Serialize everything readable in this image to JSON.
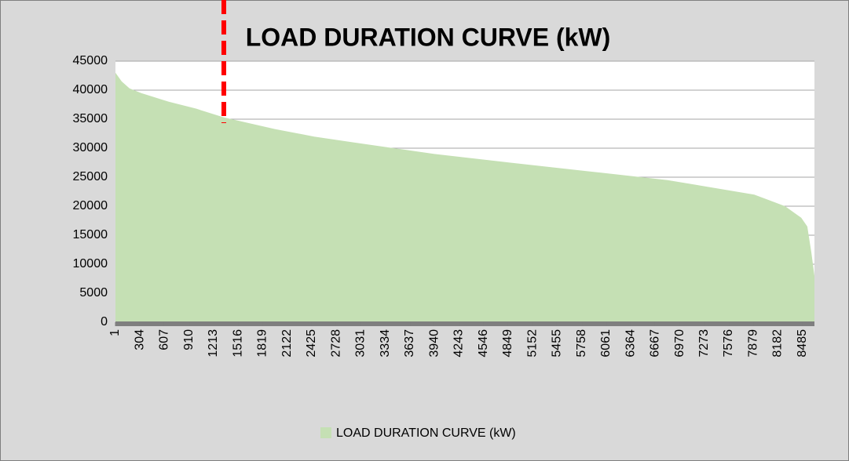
{
  "chart_data": {
    "type": "area",
    "title": "LOAD DURATION CURVE (kW)",
    "x": [
      1,
      78,
      175,
      320,
      660,
      1000,
      1340,
      1970,
      2455,
      2940,
      3940,
      4880,
      5850,
      6820,
      7890,
      8270,
      8470,
      8545,
      8595,
      8633
    ],
    "series": [
      {
        "name": "LOAD DURATION CURVE (kW)",
        "color": "#c5e0b4",
        "values": [
          43000,
          41500,
          40300,
          39500,
          38000,
          36800,
          35300,
          33300,
          32000,
          31000,
          29000,
          27500,
          26000,
          24500,
          22000,
          20000,
          18000,
          16500,
          12000,
          8000
        ]
      }
    ],
    "xlim": [
      1,
      8633
    ],
    "xticks": [
      1,
      304,
      607,
      910,
      1213,
      1516,
      1819,
      2122,
      2425,
      2728,
      3031,
      3334,
      3637,
      3940,
      4243,
      4546,
      4849,
      5152,
      5455,
      5758,
      6061,
      6364,
      6667,
      6970,
      7273,
      7576,
      7879,
      8182,
      8485
    ],
    "ylim": [
      0,
      45000
    ],
    "yticks": [
      0,
      5000,
      10000,
      15000,
      20000,
      25000,
      30000,
      35000,
      40000,
      45000
    ],
    "grid": true,
    "legend": "bottom"
  }
}
